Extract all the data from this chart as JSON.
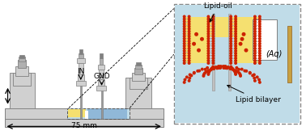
{
  "fig_width": 3.78,
  "fig_height": 1.62,
  "dpi": 100,
  "bg_color": "#ffffff",
  "gray_light": "#d0d0d0",
  "gray_mid": "#b0b0b0",
  "gray_dark": "#808080",
  "yellow_color": "#f5e070",
  "blue_color": "#90b8d8",
  "red_color": "#cc2200",
  "aqua_color": "#c0dce8",
  "white_color": "#ffffff",
  "label_75mm": "75 mm",
  "label_in": "IN",
  "label_gnd": "GND",
  "label_lipid_oil": "Lipid-oil",
  "label_aq": "(Aq)",
  "label_lipid_bilayer": "Lipid bilayer",
  "fs": 6.5
}
